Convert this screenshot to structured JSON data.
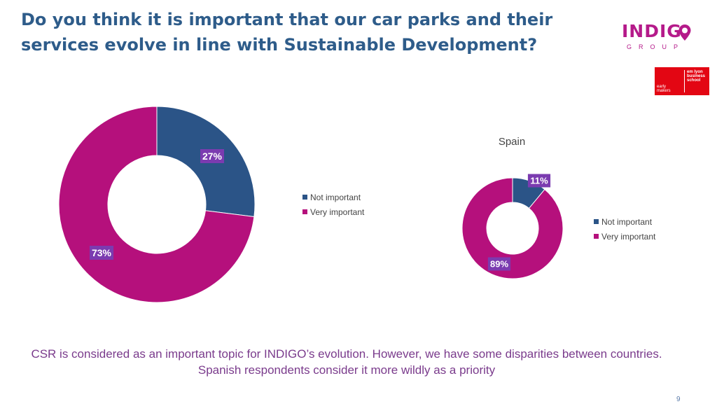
{
  "slide": {
    "title": "Do you think it is important that our car parks and their services evolve in line with Sustainable Development?",
    "caption": "CSR is considered as an important topic for INDIGO’s evolution. However, we have some disparities between countries. Spanish respondents consider it more wildly as a priority",
    "page_number": "9"
  },
  "logos": {
    "indigo_word": "INDIG",
    "indigo_sub": "GROUP",
    "em_left": "early makers",
    "em_right": "em lyon business school"
  },
  "colors": {
    "not_important": "#2b5487",
    "very_important": "#b5107c",
    "label_bg": "#7b3bb0"
  },
  "chart_data": [
    {
      "type": "pie",
      "title": "",
      "categories": [
        "Not important",
        "Very important"
      ],
      "values": [
        27,
        73
      ],
      "labels": [
        "27%",
        "73%"
      ],
      "legend": [
        "Not important",
        "Very important"
      ],
      "legend_position": "right"
    },
    {
      "type": "pie",
      "title": "Spain",
      "categories": [
        "Not important",
        "Very important"
      ],
      "values": [
        11,
        89
      ],
      "labels": [
        "11%",
        "89%"
      ],
      "legend": [
        "Not important",
        "Very important"
      ],
      "legend_position": "right"
    }
  ]
}
